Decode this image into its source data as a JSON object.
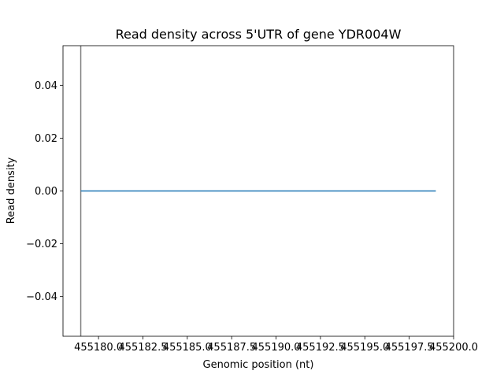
{
  "chart_data": {
    "type": "line",
    "title": "Read density across 5'UTR of gene YDR004W",
    "xlabel": "Genomic position (nt)",
    "ylabel": "Read density",
    "xlim": [
      455178.0,
      455200.0
    ],
    "ylim": [
      -0.055,
      0.055
    ],
    "x_ticks": [
      455180.0,
      455182.5,
      455185.0,
      455187.5,
      455190.0,
      455192.5,
      455195.0,
      455197.5,
      455200.0
    ],
    "x_tick_labels": [
      "455180.0",
      "455182.5",
      "455185.0",
      "455187.5",
      "455190.0",
      "455192.5",
      "455195.0",
      "455197.5",
      "455200.0"
    ],
    "y_ticks": [
      0.04,
      0.02,
      0.0,
      -0.02,
      -0.04
    ],
    "y_tick_labels": [
      "0.04",
      "0.02",
      "0.00",
      "−0.02",
      "−0.04"
    ],
    "grid": false,
    "vline_x": 455179.0,
    "series": [
      {
        "x": [
          455179,
          455180,
          455181,
          455182,
          455183,
          455184,
          455185,
          455186,
          455187,
          455188,
          455189,
          455190,
          455191,
          455192,
          455193,
          455194,
          455195,
          455196,
          455197,
          455198,
          455199
        ],
        "y": [
          0,
          0,
          0,
          0,
          0,
          0,
          0,
          0,
          0,
          0,
          0,
          0,
          0,
          0,
          0,
          0,
          0,
          0,
          0,
          0,
          0
        ]
      }
    ],
    "colors": {
      "series": "#1f77b4",
      "vline": "#808080",
      "axes": "#000000"
    }
  }
}
